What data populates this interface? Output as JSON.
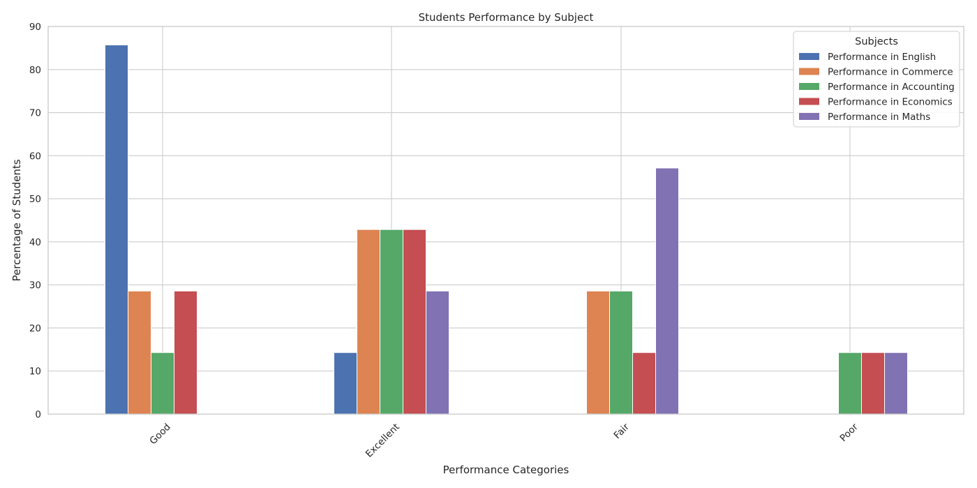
{
  "chart_data": {
    "type": "bar",
    "title": "Students Performance by Subject",
    "xlabel": "Performance Categories",
    "ylabel": "Percentage of Students",
    "categories": [
      "Good",
      "Excellent",
      "Fair",
      "Poor"
    ],
    "ylim": [
      0,
      90
    ],
    "yticks": [
      0,
      10,
      20,
      30,
      40,
      50,
      60,
      70,
      80,
      90
    ],
    "grid": true,
    "legend": {
      "title": "Subjects",
      "position": "top-right"
    },
    "series": [
      {
        "name": "Performance in English",
        "color": "#4c72b0",
        "values": [
          85.71,
          14.29,
          0,
          0
        ]
      },
      {
        "name": "Performance in Commerce",
        "color": "#dd8452",
        "values": [
          28.57,
          42.86,
          28.57,
          0
        ]
      },
      {
        "name": "Performance in Accounting",
        "color": "#55a868",
        "values": [
          14.29,
          42.86,
          28.57,
          14.29
        ]
      },
      {
        "name": "Performance in Economics",
        "color": "#c44e52",
        "values": [
          28.57,
          42.86,
          14.29,
          14.29
        ]
      },
      {
        "name": "Performance in Maths",
        "color": "#8172b3",
        "values": [
          0,
          28.57,
          57.14,
          14.29
        ]
      }
    ]
  }
}
